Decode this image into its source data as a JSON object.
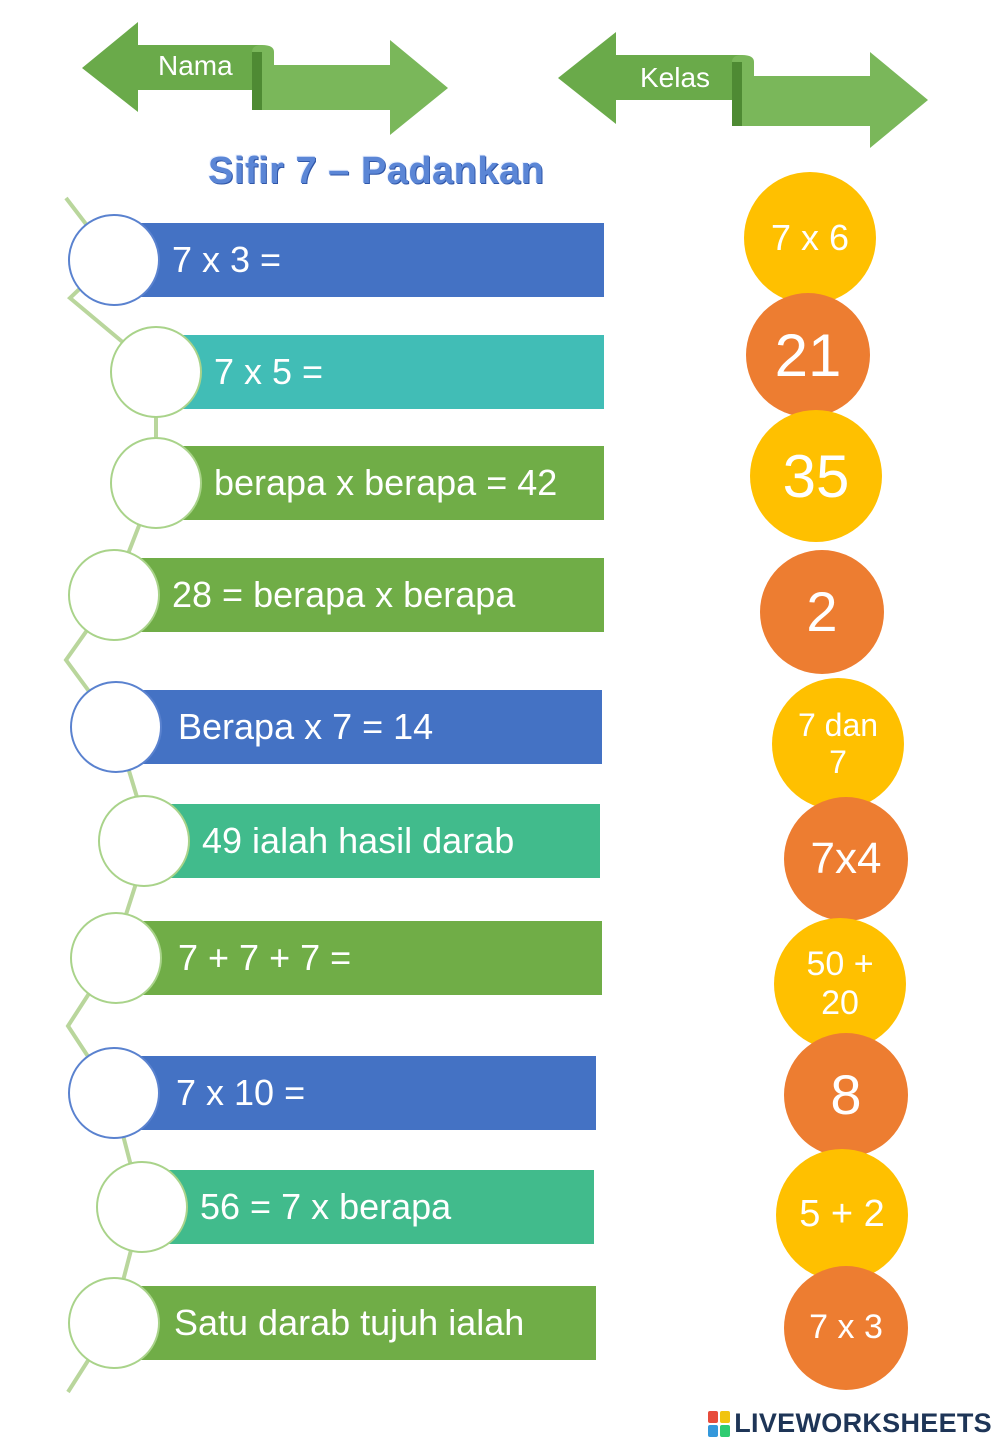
{
  "header": {
    "name_label": "Nama",
    "class_label": "Kelas",
    "ribbon_color": "#6aaa4a"
  },
  "title": "Sifir 7 – Padankan",
  "questions": [
    {
      "text": "7 x 3 =",
      "color": "#4472c4"
    },
    {
      "text": "7 x 5 =",
      "color": "#41bdb6"
    },
    {
      "text": "berapa x berapa = 42",
      "color": "#70ad47"
    },
    {
      "text": "28 = berapa x berapa",
      "color": "#70ad47"
    },
    {
      "text": "Berapa x 7 = 14",
      "color": "#4472c4"
    },
    {
      "text": "49 ialah hasil darab",
      "color": "#41bb8c"
    },
    {
      "text": "7 + 7 + 7  =",
      "color": "#70ad47"
    },
    {
      "text": "7 x 10 =",
      "color": "#4472c4"
    },
    {
      "text": "56 = 7 x berapa",
      "color": "#41bb8c"
    },
    {
      "text": "Satu darab tujuh ialah",
      "color": "#70ad47"
    }
  ],
  "answers": [
    {
      "text": "7 x 6",
      "color": "#ffc000"
    },
    {
      "text": "21",
      "color": "#ed7d31"
    },
    {
      "text": "35",
      "color": "#ffc000"
    },
    {
      "text": "2",
      "color": "#ed7d31"
    },
    {
      "text": "7 dan 7",
      "color": "#ffc000"
    },
    {
      "text": "7x4",
      "color": "#ed7d31"
    },
    {
      "text": "50 + 20",
      "color": "#ffc000"
    },
    {
      "text": "8",
      "color": "#ed7d31"
    },
    {
      "text": "5 + 2",
      "color": "#ffc000"
    },
    {
      "text": "7 x 3",
      "color": "#ed7d31"
    }
  ],
  "footer": {
    "brand": "LIVEWORKSHEETS",
    "logo_icon": "liveworksheets-logo-icon",
    "logo_colors": [
      "#e74c3c",
      "#f1c40f",
      "#3498db",
      "#2ecc71"
    ]
  }
}
